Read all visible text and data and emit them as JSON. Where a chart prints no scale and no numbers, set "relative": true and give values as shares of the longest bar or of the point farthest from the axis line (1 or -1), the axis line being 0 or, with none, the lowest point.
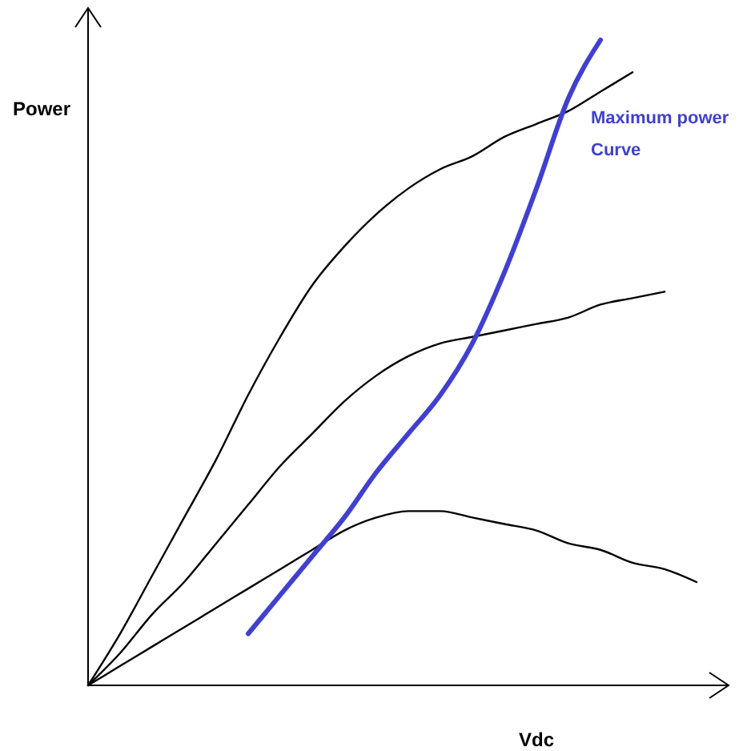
{
  "chart_data": {
    "type": "line",
    "relative": true,
    "xlabel": "Vdc",
    "ylabel": "Power",
    "legend": false,
    "marker": "none",
    "line_style": "solid",
    "categories": [
      null,
      null,
      null,
      null,
      null,
      null,
      null,
      null,
      null,
      null,
      null,
      null,
      null,
      null,
      null,
      null,
      null,
      null,
      null,
      null
    ],
    "series": [
      {
        "color": "#000000",
        "values": [
          0,
          0.08,
          0.17,
          0.26,
          0.35,
          0.45,
          0.54,
          0.62,
          0.68,
          0.73,
          0.77,
          0.8,
          0.82,
          0.85,
          0.87,
          0.89,
          0.92,
          0.95,
          null,
          null
        ]
      },
      {
        "color": "#000000",
        "values": [
          0,
          0.05,
          0.11,
          0.16,
          0.22,
          0.28,
          0.34,
          0.39,
          0.44,
          0.48,
          0.51,
          0.53,
          0.54,
          0.55,
          0.56,
          0.57,
          0.59,
          0.6,
          0.61,
          null
        ]
      },
      {
        "color": "#000000",
        "values": [
          0,
          0.03,
          0.06,
          0.09,
          0.12,
          0.15,
          0.18,
          0.21,
          0.24,
          0.26,
          0.27,
          0.27,
          0.26,
          0.25,
          0.24,
          0.22,
          0.21,
          0.19,
          0.18,
          0.16
        ]
      },
      {
        "name": "Maximum power Curve",
        "color": "#4040d0",
        "values": [
          null,
          null,
          null,
          null,
          null,
          0.08,
          0.14,
          0.2,
          0.26,
          0.33,
          0.39,
          0.45,
          0.53,
          0.64,
          0.77,
          0.91,
          1.0,
          null,
          null,
          null
        ]
      }
    ]
  }
}
